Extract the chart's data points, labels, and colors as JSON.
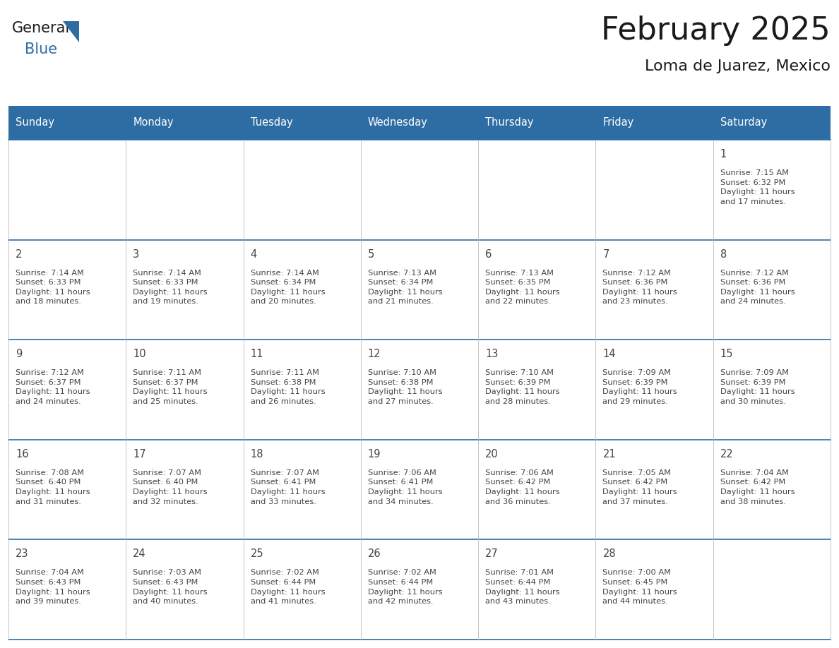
{
  "title": "February 2025",
  "subtitle": "Loma de Juarez, Mexico",
  "header_bg": "#2E6DA4",
  "header_text": "#FFFFFF",
  "cell_bg": "#FFFFFF",
  "line_color": "#2E6DA4",
  "grid_line_color": "#CCCCCC",
  "text_color": "#444444",
  "days_of_week": [
    "Sunday",
    "Monday",
    "Tuesday",
    "Wednesday",
    "Thursday",
    "Friday",
    "Saturday"
  ],
  "calendar_data": [
    [
      null,
      null,
      null,
      null,
      null,
      null,
      {
        "day": "1",
        "sunrise": "7:15 AM",
        "sunset": "6:32 PM",
        "daylight_hrs": "11 hours",
        "daylight_min": "and 17 minutes."
      }
    ],
    [
      {
        "day": "2",
        "sunrise": "7:14 AM",
        "sunset": "6:33 PM",
        "daylight_hrs": "11 hours",
        "daylight_min": "and 18 minutes."
      },
      {
        "day": "3",
        "sunrise": "7:14 AM",
        "sunset": "6:33 PM",
        "daylight_hrs": "11 hours",
        "daylight_min": "and 19 minutes."
      },
      {
        "day": "4",
        "sunrise": "7:14 AM",
        "sunset": "6:34 PM",
        "daylight_hrs": "11 hours",
        "daylight_min": "and 20 minutes."
      },
      {
        "day": "5",
        "sunrise": "7:13 AM",
        "sunset": "6:34 PM",
        "daylight_hrs": "11 hours",
        "daylight_min": "and 21 minutes."
      },
      {
        "day": "6",
        "sunrise": "7:13 AM",
        "sunset": "6:35 PM",
        "daylight_hrs": "11 hours",
        "daylight_min": "and 22 minutes."
      },
      {
        "day": "7",
        "sunrise": "7:12 AM",
        "sunset": "6:36 PM",
        "daylight_hrs": "11 hours",
        "daylight_min": "and 23 minutes."
      },
      {
        "day": "8",
        "sunrise": "7:12 AM",
        "sunset": "6:36 PM",
        "daylight_hrs": "11 hours",
        "daylight_min": "and 24 minutes."
      }
    ],
    [
      {
        "day": "9",
        "sunrise": "7:12 AM",
        "sunset": "6:37 PM",
        "daylight_hrs": "11 hours",
        "daylight_min": "and 24 minutes."
      },
      {
        "day": "10",
        "sunrise": "7:11 AM",
        "sunset": "6:37 PM",
        "daylight_hrs": "11 hours",
        "daylight_min": "and 25 minutes."
      },
      {
        "day": "11",
        "sunrise": "7:11 AM",
        "sunset": "6:38 PM",
        "daylight_hrs": "11 hours",
        "daylight_min": "and 26 minutes."
      },
      {
        "day": "12",
        "sunrise": "7:10 AM",
        "sunset": "6:38 PM",
        "daylight_hrs": "11 hours",
        "daylight_min": "and 27 minutes."
      },
      {
        "day": "13",
        "sunrise": "7:10 AM",
        "sunset": "6:39 PM",
        "daylight_hrs": "11 hours",
        "daylight_min": "and 28 minutes."
      },
      {
        "day": "14",
        "sunrise": "7:09 AM",
        "sunset": "6:39 PM",
        "daylight_hrs": "11 hours",
        "daylight_min": "and 29 minutes."
      },
      {
        "day": "15",
        "sunrise": "7:09 AM",
        "sunset": "6:39 PM",
        "daylight_hrs": "11 hours",
        "daylight_min": "and 30 minutes."
      }
    ],
    [
      {
        "day": "16",
        "sunrise": "7:08 AM",
        "sunset": "6:40 PM",
        "daylight_hrs": "11 hours",
        "daylight_min": "and 31 minutes."
      },
      {
        "day": "17",
        "sunrise": "7:07 AM",
        "sunset": "6:40 PM",
        "daylight_hrs": "11 hours",
        "daylight_min": "and 32 minutes."
      },
      {
        "day": "18",
        "sunrise": "7:07 AM",
        "sunset": "6:41 PM",
        "daylight_hrs": "11 hours",
        "daylight_min": "and 33 minutes."
      },
      {
        "day": "19",
        "sunrise": "7:06 AM",
        "sunset": "6:41 PM",
        "daylight_hrs": "11 hours",
        "daylight_min": "and 34 minutes."
      },
      {
        "day": "20",
        "sunrise": "7:06 AM",
        "sunset": "6:42 PM",
        "daylight_hrs": "11 hours",
        "daylight_min": "and 36 minutes."
      },
      {
        "day": "21",
        "sunrise": "7:05 AM",
        "sunset": "6:42 PM",
        "daylight_hrs": "11 hours",
        "daylight_min": "and 37 minutes."
      },
      {
        "day": "22",
        "sunrise": "7:04 AM",
        "sunset": "6:42 PM",
        "daylight_hrs": "11 hours",
        "daylight_min": "and 38 minutes."
      }
    ],
    [
      {
        "day": "23",
        "sunrise": "7:04 AM",
        "sunset": "6:43 PM",
        "daylight_hrs": "11 hours",
        "daylight_min": "and 39 minutes."
      },
      {
        "day": "24",
        "sunrise": "7:03 AM",
        "sunset": "6:43 PM",
        "daylight_hrs": "11 hours",
        "daylight_min": "and 40 minutes."
      },
      {
        "day": "25",
        "sunrise": "7:02 AM",
        "sunset": "6:44 PM",
        "daylight_hrs": "11 hours",
        "daylight_min": "and 41 minutes."
      },
      {
        "day": "26",
        "sunrise": "7:02 AM",
        "sunset": "6:44 PM",
        "daylight_hrs": "11 hours",
        "daylight_min": "and 42 minutes."
      },
      {
        "day": "27",
        "sunrise": "7:01 AM",
        "sunset": "6:44 PM",
        "daylight_hrs": "11 hours",
        "daylight_min": "and 43 minutes."
      },
      {
        "day": "28",
        "sunrise": "7:00 AM",
        "sunset": "6:45 PM",
        "daylight_hrs": "11 hours",
        "daylight_min": "and 44 minutes."
      },
      null
    ]
  ],
  "logo_general_color": "#1a1a1a",
  "logo_blue_color": "#2E6DA4",
  "fig_width": 11.88,
  "fig_height": 9.18,
  "dpi": 100
}
